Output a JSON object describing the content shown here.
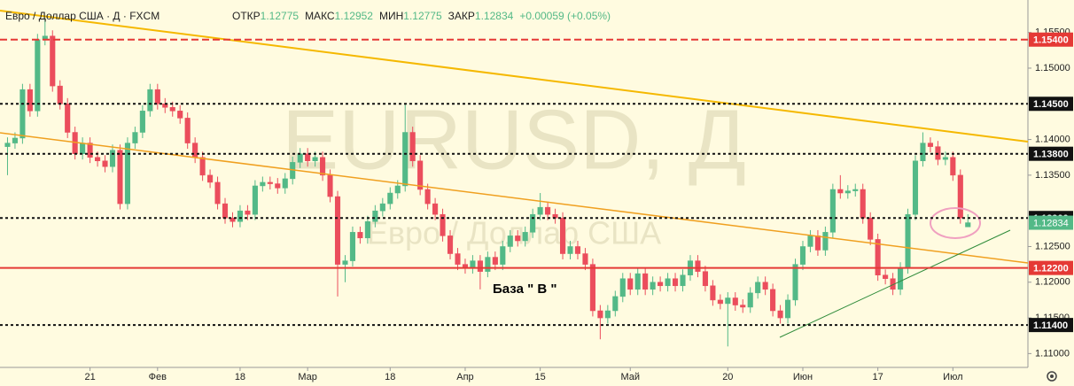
{
  "chart_data": {
    "type": "candlestick",
    "header": {
      "symbol": "Евро / Доллар США · Д · FXCM",
      "fields": [
        {
          "label": "ОТКР",
          "value": 1.12775
        },
        {
          "label": "МАКС",
          "value": 1.12952
        },
        {
          "label": "МИН",
          "value": 1.12775
        },
        {
          "label": "ЗАКР",
          "value": 1.12834
        }
      ],
      "change": "+0.00059 (+0.05%)"
    },
    "watermark": "EURUSD, Д",
    "watermark_subtitle": "Евро / Доллар США",
    "annotation": "База  \" В \"",
    "up_color": "#53b987",
    "down_color": "#eb4d5c",
    "open": [
      1.139,
      1.1395,
      1.1402,
      1.147,
      1.144,
      1.154,
      1.1545,
      1.1475,
      1.145,
      1.141,
      1.138,
      1.1395,
      1.1375,
      1.137,
      1.1362,
      1.1385,
      1.131,
      1.1395,
      1.141,
      1.144,
      1.147,
      1.145,
      1.1445,
      1.144,
      1.143,
      1.1395,
      1.1375,
      1.135,
      1.134,
      1.131,
      1.129,
      1.1285,
      1.13,
      1.1295,
      1.1335,
      1.134,
      1.1338,
      1.1332,
      1.1345,
      1.1368,
      1.138,
      1.137,
      1.1375,
      1.135,
      1.132,
      1.1225,
      1.123,
      1.127,
      1.1262,
      1.1285,
      1.13,
      1.131,
      1.1325,
      1.1335,
      1.141,
      1.137,
      1.133,
      1.131,
      1.1295,
      1.1265,
      1.124,
      1.1225,
      1.122,
      1.123,
      1.1215,
      1.1235,
      1.1225,
      1.125,
      1.1265,
      1.1258,
      1.127,
      1.1295,
      1.1305,
      1.1295,
      1.129,
      1.124,
      1.125,
      1.124,
      1.1225,
      1.116,
      1.115,
      1.116,
      1.118,
      1.1205,
      1.119,
      1.1212,
      1.119,
      1.12,
      1.1195,
      1.1205,
      1.1195,
      1.121,
      1.123,
      1.1215,
      1.1195,
      1.1175,
      1.117,
      1.1178,
      1.1168,
      1.1165,
      1.1185,
      1.12,
      1.119,
      1.116,
      1.115,
      1.1175,
      1.1225,
      1.125,
      1.1265,
      1.1245,
      1.127,
      1.133,
      1.1325,
      1.1328,
      1.133,
      1.129,
      1.126,
      1.121,
      1.1205,
      1.119,
      1.122,
      1.1295,
      1.137,
      1.1395,
      1.139,
      1.1372,
      1.1375,
      1.135,
      1.12775
    ],
    "high": [
      1.1403,
      1.141,
      1.1478,
      1.1478,
      1.1548,
      1.157,
      1.1553,
      1.1483,
      1.1458,
      1.1418,
      1.1403,
      1.1403,
      1.1383,
      1.1378,
      1.1393,
      1.1393,
      1.1403,
      1.1418,
      1.1448,
      1.1478,
      1.1478,
      1.1458,
      1.1453,
      1.1448,
      1.1438,
      1.1403,
      1.1383,
      1.1358,
      1.1348,
      1.1318,
      1.1298,
      1.1308,
      1.1308,
      1.1343,
      1.1348,
      1.1348,
      1.1346,
      1.1353,
      1.1376,
      1.1388,
      1.1388,
      1.1383,
      1.1383,
      1.1358,
      1.1328,
      1.1238,
      1.1278,
      1.1278,
      1.1293,
      1.1308,
      1.1318,
      1.1333,
      1.1343,
      1.145,
      1.1418,
      1.1378,
      1.1338,
      1.1318,
      1.1303,
      1.1273,
      1.1248,
      1.1233,
      1.1238,
      1.1238,
      1.1243,
      1.1243,
      1.1258,
      1.1273,
      1.1273,
      1.1278,
      1.1303,
      1.1325,
      1.1313,
      1.1303,
      1.1298,
      1.1258,
      1.1258,
      1.1248,
      1.1233,
      1.1168,
      1.1168,
      1.1188,
      1.1213,
      1.1213,
      1.122,
      1.122,
      1.1208,
      1.1208,
      1.1213,
      1.1213,
      1.1218,
      1.1238,
      1.1238,
      1.1223,
      1.1203,
      1.1183,
      1.1186,
      1.1186,
      1.1176,
      1.1193,
      1.1208,
      1.1208,
      1.1198,
      1.1168,
      1.1183,
      1.1233,
      1.1258,
      1.1273,
      1.1273,
      1.1278,
      1.1338,
      1.135,
      1.1336,
      1.1338,
      1.1338,
      1.1298,
      1.1268,
      1.1218,
      1.1213,
      1.1228,
      1.1303,
      1.1378,
      1.141,
      1.1403,
      1.1398,
      1.1383,
      1.1383,
      1.1358,
      1.12952
    ],
    "low": [
      1.135,
      1.1387,
      1.1394,
      1.1432,
      1.1432,
      1.1532,
      1.1467,
      1.1442,
      1.1402,
      1.1372,
      1.1372,
      1.1367,
      1.1362,
      1.1354,
      1.1354,
      1.1302,
      1.1302,
      1.1387,
      1.1402,
      1.1432,
      1.1442,
      1.1437,
      1.1432,
      1.1422,
      1.1387,
      1.1367,
      1.1342,
      1.1332,
      1.1302,
      1.1282,
      1.1277,
      1.1277,
      1.1287,
      1.1287,
      1.1327,
      1.133,
      1.1324,
      1.1324,
      1.1337,
      1.136,
      1.1362,
      1.1362,
      1.1342,
      1.1312,
      1.118,
      1.12,
      1.1222,
      1.1254,
      1.1254,
      1.1277,
      1.1292,
      1.1302,
      1.1317,
      1.1327,
      1.1362,
      1.1322,
      1.1302,
      1.1287,
      1.1257,
      1.1232,
      1.1217,
      1.1212,
      1.1212,
      1.119,
      1.1207,
      1.1217,
      1.1217,
      1.1242,
      1.125,
      1.125,
      1.1262,
      1.1287,
      1.1287,
      1.1282,
      1.1232,
      1.1232,
      1.1232,
      1.1217,
      1.1152,
      1.112,
      1.1142,
      1.1152,
      1.1172,
      1.1182,
      1.1182,
      1.1182,
      1.1182,
      1.1187,
      1.1187,
      1.1187,
      1.1187,
      1.1202,
      1.1207,
      1.1187,
      1.1167,
      1.1162,
      1.111,
      1.116,
      1.1157,
      1.1157,
      1.1177,
      1.1182,
      1.1152,
      1.1142,
      1.1142,
      1.1167,
      1.1217,
      1.1242,
      1.1237,
      1.1237,
      1.1262,
      1.1317,
      1.1317,
      1.132,
      1.1282,
      1.1252,
      1.1202,
      1.1197,
      1.1182,
      1.1182,
      1.1212,
      1.1287,
      1.1362,
      1.1382,
      1.1364,
      1.1364,
      1.1342,
      1.1282,
      1.12775
    ],
    "close": [
      1.1395,
      1.1402,
      1.147,
      1.144,
      1.154,
      1.1545,
      1.1475,
      1.145,
      1.141,
      1.138,
      1.1395,
      1.1375,
      1.137,
      1.1362,
      1.1385,
      1.131,
      1.1395,
      1.141,
      1.144,
      1.147,
      1.145,
      1.1445,
      1.144,
      1.143,
      1.1395,
      1.1375,
      1.135,
      1.134,
      1.131,
      1.129,
      1.1285,
      1.13,
      1.1295,
      1.1335,
      1.134,
      1.1338,
      1.1332,
      1.1345,
      1.1368,
      1.138,
      1.137,
      1.1375,
      1.135,
      1.132,
      1.1225,
      1.123,
      1.127,
      1.1262,
      1.1285,
      1.13,
      1.131,
      1.1325,
      1.1335,
      1.141,
      1.137,
      1.133,
      1.131,
      1.1295,
      1.1265,
      1.124,
      1.1225,
      1.122,
      1.123,
      1.1215,
      1.1235,
      1.1225,
      1.125,
      1.1265,
      1.1258,
      1.127,
      1.1295,
      1.1305,
      1.1295,
      1.129,
      1.124,
      1.125,
      1.124,
      1.1225,
      1.116,
      1.115,
      1.116,
      1.118,
      1.1205,
      1.119,
      1.1212,
      1.119,
      1.12,
      1.1195,
      1.1205,
      1.1195,
      1.121,
      1.123,
      1.1215,
      1.1195,
      1.1175,
      1.117,
      1.1178,
      1.1168,
      1.1165,
      1.1185,
      1.12,
      1.119,
      1.116,
      1.115,
      1.1175,
      1.1225,
      1.125,
      1.1265,
      1.1245,
      1.127,
      1.133,
      1.1325,
      1.1328,
      1.133,
      1.129,
      1.126,
      1.121,
      1.1205,
      1.119,
      1.122,
      1.1295,
      1.137,
      1.1395,
      1.139,
      1.1372,
      1.1375,
      1.135,
      1.129,
      1.12834
    ],
    "xlim": [
      -1,
      136
    ],
    "xticks": [
      {
        "value": 11,
        "label": "21"
      },
      {
        "value": 20,
        "label": "Фев"
      },
      {
        "value": 31,
        "label": "18"
      },
      {
        "value": 40,
        "label": "Мар"
      },
      {
        "value": 51,
        "label": "18"
      },
      {
        "value": 61,
        "label": "Апр"
      },
      {
        "value": 71,
        "label": "15"
      },
      {
        "value": 83,
        "label": "Май"
      },
      {
        "value": 96,
        "label": "20"
      },
      {
        "value": 106,
        "label": "Июн"
      },
      {
        "value": 116,
        "label": "17"
      },
      {
        "value": 126,
        "label": "Июл"
      }
    ],
    "ylim": [
      1.10806,
      1.15955
    ],
    "yticks": [
      {
        "value": 1.155,
        "label": "1.15500"
      },
      {
        "value": 1.15,
        "label": "1.15000"
      },
      {
        "value": 1.14,
        "label": "1.14000"
      },
      {
        "value": 1.135,
        "label": "1.13500"
      },
      {
        "value": 1.125,
        "label": "1.12500"
      },
      {
        "value": 1.12,
        "label": "1.12000"
      },
      {
        "value": 1.115,
        "label": "1.11500"
      },
      {
        "value": 1.11,
        "label": "1.11000"
      }
    ],
    "levels": [
      {
        "value": 1.154,
        "label": "1.15400",
        "color": "#e53935",
        "style": "dashed"
      },
      {
        "value": 1.145,
        "label": "1.14500",
        "color": "#111111",
        "style": "dotted"
      },
      {
        "value": 1.138,
        "label": "1.13800",
        "color": "#111111",
        "style": "dotted"
      },
      {
        "value": 1.129,
        "label": "1.12900",
        "color": "#111111",
        "style": "dotted"
      },
      {
        "value": 1.122,
        "label": "1.12200",
        "color": "#e53935",
        "style": "solid"
      },
      {
        "value": 1.114,
        "label": "1.11400",
        "color": "#111111",
        "style": "dotted"
      }
    ],
    "current_price": 1.12834,
    "current_price_color": "#53b987"
  }
}
